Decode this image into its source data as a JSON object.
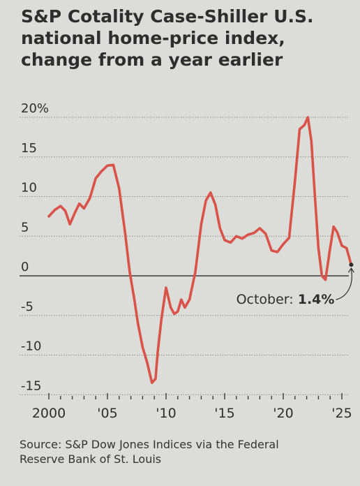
{
  "chart_data": {
    "type": "line",
    "title_lines": [
      "S&P Cotality Case-Shiller U.S.",
      "national home-price index,",
      "change from a year earlier"
    ],
    "y_tick_labels": [
      "20%",
      "15",
      "10",
      "5",
      "0",
      "-5",
      "-10",
      "-15"
    ],
    "y_tick_values": [
      20,
      15,
      10,
      5,
      0,
      -5,
      -10,
      -15
    ],
    "ylim": [
      -16,
      20
    ],
    "x_tick_labels": [
      "2000",
      "'05",
      "'10",
      "'15",
      "'20",
      "'25"
    ],
    "x_tick_values": [
      2000,
      2005,
      2010,
      2015,
      2020,
      2025
    ],
    "xlim": [
      1999.8,
      2025.8
    ],
    "grid": true,
    "series": [
      {
        "color": "#d9534a",
        "x": [
          2000.0,
          2000.5,
          2001.0,
          2001.4,
          2001.8,
          2002.2,
          2002.6,
          2003.0,
          2003.5,
          2004.0,
          2004.5,
          2005.0,
          2005.5,
          2006.0,
          2006.5,
          2006.9,
          2007.3,
          2007.6,
          2008.0,
          2008.4,
          2008.8,
          2009.1,
          2009.3,
          2009.6,
          2009.8,
          2010.0,
          2010.4,
          2010.7,
          2011.0,
          2011.3,
          2011.6,
          2012.0,
          2012.5,
          2013.0,
          2013.4,
          2013.8,
          2014.2,
          2014.6,
          2015.0,
          2015.5,
          2016.0,
          2016.5,
          2017.0,
          2017.5,
          2018.0,
          2018.5,
          2019.0,
          2019.5,
          2020.0,
          2020.5,
          2021.0,
          2021.4,
          2021.8,
          2022.1,
          2022.4,
          2022.7,
          2023.0,
          2023.3,
          2023.6,
          2024.0,
          2024.3,
          2024.6,
          2025.0,
          2025.4,
          2025.8
        ],
        "y": [
          7.5,
          8.3,
          8.8,
          8.2,
          6.5,
          7.9,
          9.1,
          8.5,
          9.8,
          12.3,
          13.2,
          13.9,
          14.0,
          11.0,
          5.5,
          0.5,
          -3.0,
          -6.0,
          -9.0,
          -11.0,
          -13.5,
          -13.0,
          -9.5,
          -5.5,
          -3.5,
          -1.5,
          -4.0,
          -4.8,
          -4.5,
          -3.0,
          -4.0,
          -3.0,
          0.5,
          6.5,
          9.5,
          10.5,
          9.0,
          6.0,
          4.5,
          4.2,
          5.0,
          4.7,
          5.2,
          5.4,
          6.0,
          5.3,
          3.2,
          3.0,
          4.0,
          4.8,
          12.0,
          18.5,
          19.0,
          20.0,
          17.0,
          10.0,
          3.5,
          0.0,
          -0.5,
          3.5,
          6.2,
          5.5,
          3.8,
          3.5,
          1.4
        ]
      }
    ],
    "annotation": {
      "label": "October: ",
      "value_label": "1.4%",
      "x": 2025.8,
      "y": 1.4
    }
  },
  "source_lines": [
    "Source: S&P Dow Jones Indices via the Federal",
    "Reserve Bank of St. Louis"
  ]
}
